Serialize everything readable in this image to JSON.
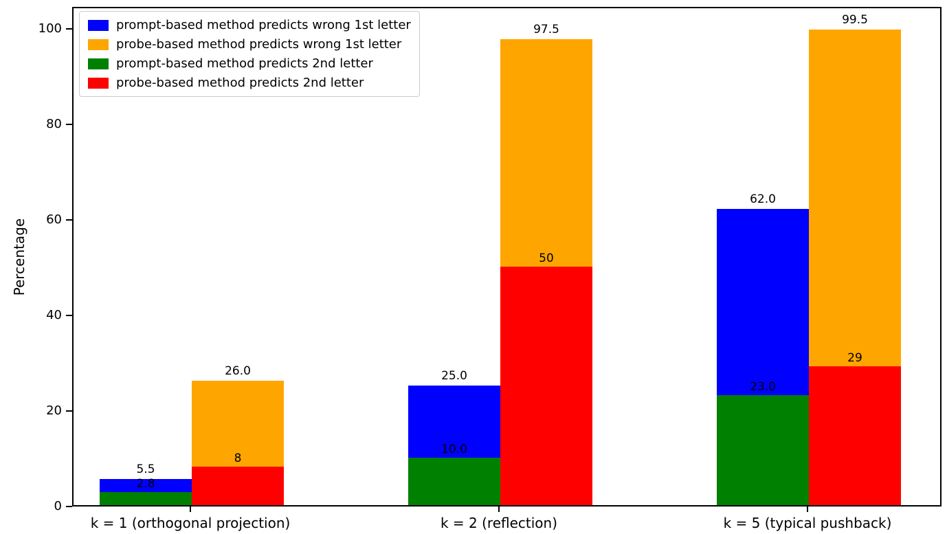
{
  "chart_data": {
    "type": "bar",
    "title": "",
    "xlabel": "",
    "ylabel": "Percentage",
    "ylim": [
      0,
      104
    ],
    "yticks": [
      0,
      20,
      40,
      60,
      80,
      100
    ],
    "grid": false,
    "legend_position": "upper left",
    "categories": [
      "k = 1 (orthogonal projection)",
      "k = 2 (reflection)",
      "k = 5 (typical pushback)"
    ],
    "legend": [
      {
        "label": "prompt-based method predicts wrong 1st letter",
        "color": "#0000ff"
      },
      {
        "label": "probe-based method predicts wrong 1st letter",
        "color": "#ffa500"
      },
      {
        "label": "prompt-based method predicts 2nd letter",
        "color": "#008000"
      },
      {
        "label": "probe-based method predicts 2nd letter",
        "color": "#ff0000"
      }
    ],
    "series": [
      {
        "name": "prompt-based method predicts wrong 1st letter",
        "color": "#0000ff",
        "bar": "prompt",
        "role": "total",
        "values": [
          5.5,
          25.0,
          62.0
        ],
        "labels": [
          "5.5",
          "25.0",
          "62.0"
        ]
      },
      {
        "name": "probe-based method predicts wrong 1st letter",
        "color": "#ffa500",
        "bar": "probe",
        "role": "total",
        "values": [
          26.0,
          97.5,
          99.5
        ],
        "labels": [
          "26.0",
          "97.5",
          "99.5"
        ]
      },
      {
        "name": "prompt-based method predicts 2nd letter",
        "color": "#008000",
        "bar": "prompt",
        "role": "inner",
        "values": [
          2.8,
          10.0,
          23.0
        ],
        "labels": [
          "2.8",
          "10.0",
          "23.0"
        ]
      },
      {
        "name": "probe-based method predicts 2nd letter",
        "color": "#ff0000",
        "bar": "probe",
        "role": "inner",
        "values": [
          8,
          50,
          29
        ],
        "labels": [
          "8",
          "50",
          "29"
        ]
      }
    ]
  }
}
